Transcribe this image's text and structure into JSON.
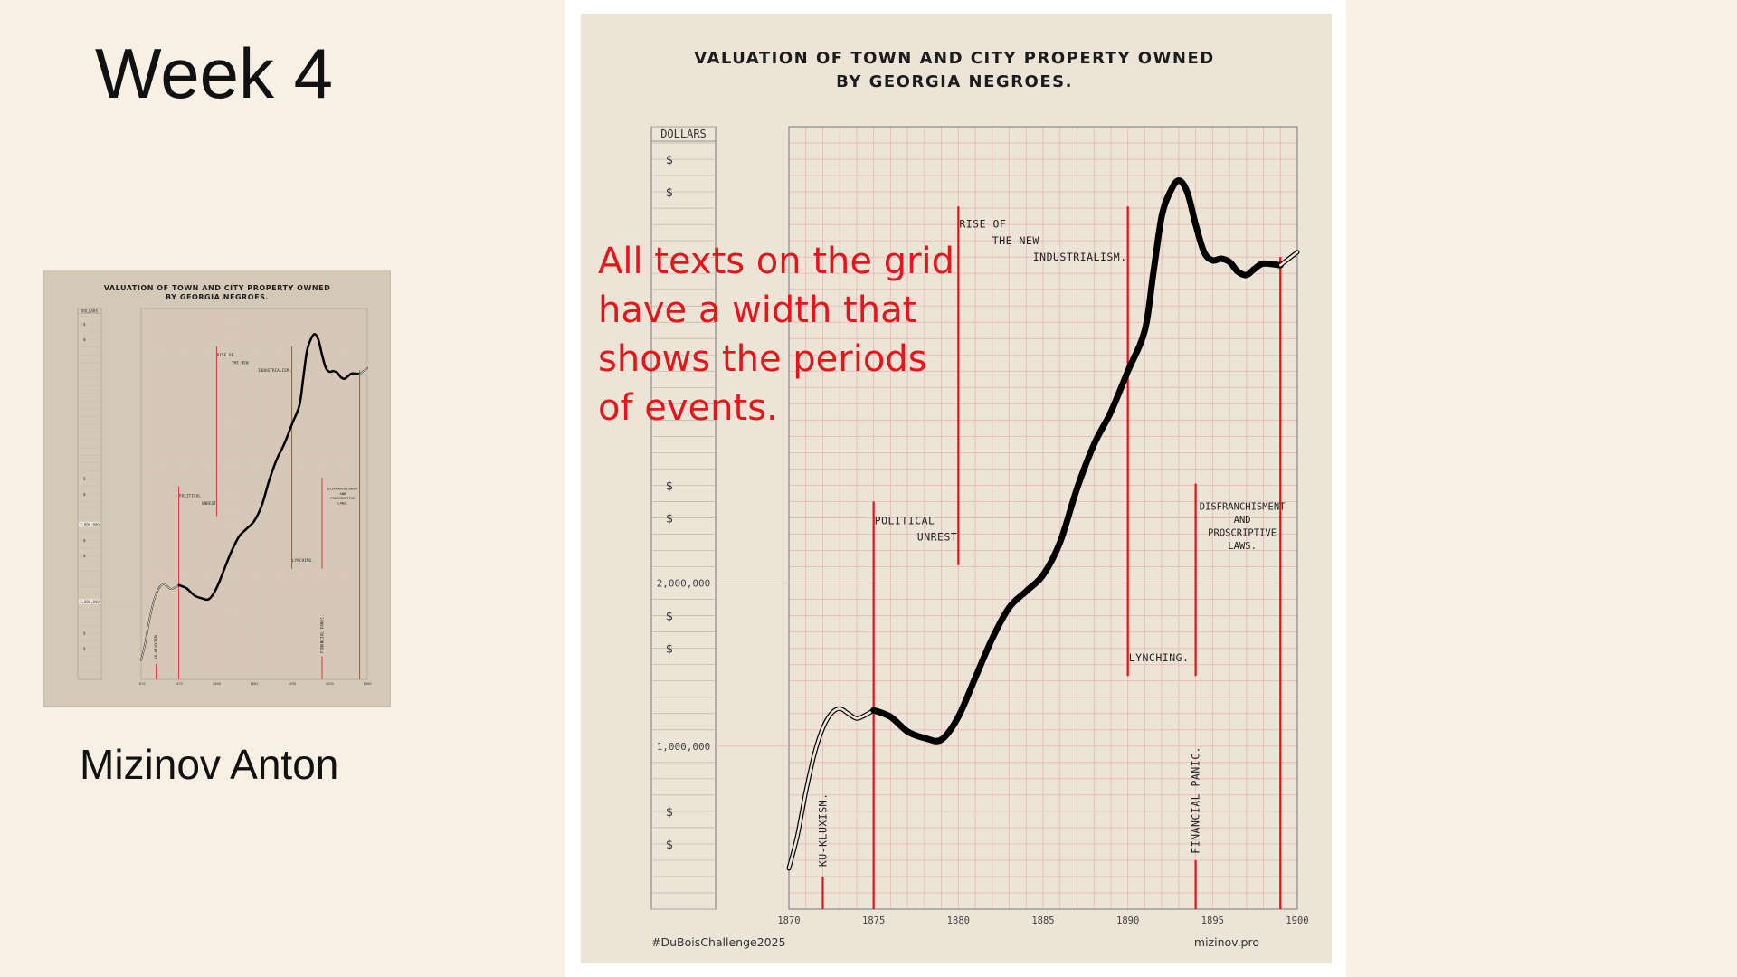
{
  "slide": {
    "title": "Week 4",
    "author": "Mizinov Anton",
    "annotation_lines": [
      "All texts on the grid",
      "have a width that",
      "shows the periods",
      "of events."
    ]
  },
  "colors": {
    "background": "#f8f0e5",
    "poster": "#ece4d7",
    "grid": "#e9b9b9",
    "event_line": "#e0121a",
    "curve": "#000000",
    "annotation": "#e4161c"
  },
  "chart_data": {
    "type": "line",
    "title": "VALUATION OF TOWN AND CITY PROPERTY OWNED\nBY GEORGIA NEGROES.",
    "title_lines": [
      "VALUATION OF TOWN AND CITY PROPERTY OWNED",
      "BY GEORGIA NEGROES."
    ],
    "xlabel": "",
    "ylabel": "DOLLARS",
    "xlim": [
      1870,
      1900
    ],
    "ylim": [
      0,
      4800000
    ],
    "x_ticks": [
      "1870",
      "1875",
      "1880",
      "1885",
      "1890",
      "1895",
      "1900"
    ],
    "y_tick_labels": [
      {
        "value": 1000000,
        "label": "1,000,000"
      },
      {
        "value": 2000000,
        "label": "2,000,000"
      }
    ],
    "dollar_marks": [
      400000,
      600000,
      1600000,
      1800000,
      2400000,
      2600000,
      4400000,
      4600000
    ],
    "grid": true,
    "series": [
      {
        "style": "double-outline",
        "x": [
          1870,
          1870.5,
          1871,
          1871.5,
          1872,
          1872.5,
          1873,
          1873.5,
          1874,
          1874.5,
          1875
        ],
        "values": [
          250000,
          450000,
          720000,
          950000,
          1110000,
          1200000,
          1230000,
          1200000,
          1170000,
          1190000,
          1220000
        ]
      },
      {
        "style": "thick-solid",
        "x": [
          1875,
          1876,
          1877,
          1878,
          1879,
          1880,
          1881,
          1882,
          1883,
          1884,
          1885,
          1886,
          1887,
          1888,
          1889,
          1890,
          1891,
          1891.5,
          1892,
          1892.5,
          1893,
          1893.5,
          1894,
          1894.5,
          1895,
          1895.5,
          1896,
          1896.5,
          1897,
          1897.5,
          1898,
          1899
        ],
        "values": [
          1220000,
          1180000,
          1090000,
          1050000,
          1040000,
          1180000,
          1420000,
          1660000,
          1850000,
          1950000,
          2050000,
          2250000,
          2580000,
          2850000,
          3050000,
          3300000,
          3550000,
          3900000,
          4250000,
          4400000,
          4470000,
          4400000,
          4200000,
          4030000,
          3980000,
          3990000,
          3970000,
          3910000,
          3890000,
          3930000,
          3960000,
          3950000
        ]
      },
      {
        "style": "double-outline",
        "x": [
          1899,
          1899.5,
          1900
        ],
        "values": [
          3950000,
          3990000,
          4030000
        ]
      }
    ],
    "events": [
      {
        "name": "ku-kluxism",
        "lines": [
          "KU-KLUXISM."
        ],
        "orientation": "vertical",
        "start": 1872,
        "end": 1872
      },
      {
        "name": "political-unrest",
        "lines": [
          "POLITICAL",
          "UNREST"
        ],
        "orientation": "horizontal",
        "start": 1875,
        "end": 1880
      },
      {
        "name": "rise-of-the-new-industrialism",
        "lines": [
          "RISE OF",
          "THE NEW",
          "INDUSTRIALISM."
        ],
        "orientation": "horizontal",
        "start": 1880,
        "end": 1890
      },
      {
        "name": "lynching",
        "lines": [
          "LYNCHING."
        ],
        "orientation": "horizontal",
        "start": 1890,
        "end": 1894
      },
      {
        "name": "financial-panic",
        "lines": [
          "FINANCIAL PANIC."
        ],
        "orientation": "vertical",
        "start": 1894,
        "end": 1894
      },
      {
        "name": "disfranchisment",
        "lines": [
          "DISFRANCHISMENT",
          "AND",
          "PROSCRIPTIVE",
          "LAWS."
        ],
        "orientation": "horizontal",
        "start": 1894,
        "end": 1899.5
      }
    ],
    "footer_left": "#DuBoisChallenge2025",
    "footer_right": "mizinov.pro"
  }
}
